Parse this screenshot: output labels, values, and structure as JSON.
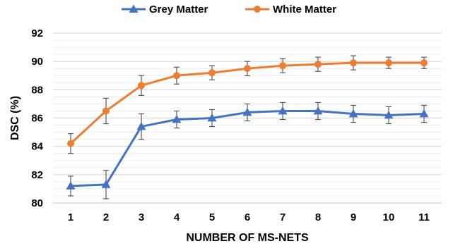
{
  "chart_data": {
    "type": "line",
    "title": "",
    "xlabel": "NUMBER OF MS-NETS",
    "ylabel": "DSC (%)",
    "x": [
      "1",
      "2",
      "3",
      "4",
      "5",
      "6",
      "7",
      "8",
      "9",
      "10",
      "11"
    ],
    "y_ticks": [
      "80",
      "82",
      "84",
      "86",
      "88",
      "90",
      "92"
    ],
    "ylim": [
      80,
      92
    ],
    "grid": true,
    "legend_position": "top",
    "series": [
      {
        "name": "Grey Matter",
        "color": "#4472c4",
        "marker": "triangle",
        "values": [
          81.2,
          81.3,
          85.4,
          85.9,
          86.0,
          86.4,
          86.5,
          86.5,
          86.3,
          86.2,
          86.3
        ],
        "error": [
          0.7,
          1.0,
          0.9,
          0.6,
          0.6,
          0.6,
          0.6,
          0.6,
          0.6,
          0.6,
          0.6
        ]
      },
      {
        "name": "White Matter",
        "color": "#ed7d31",
        "marker": "circle",
        "values": [
          84.2,
          86.5,
          88.3,
          89.0,
          89.2,
          89.5,
          89.7,
          89.8,
          89.9,
          89.9,
          89.9
        ],
        "error": [
          0.7,
          0.9,
          0.7,
          0.6,
          0.5,
          0.5,
          0.5,
          0.5,
          0.5,
          0.4,
          0.4
        ]
      }
    ]
  }
}
